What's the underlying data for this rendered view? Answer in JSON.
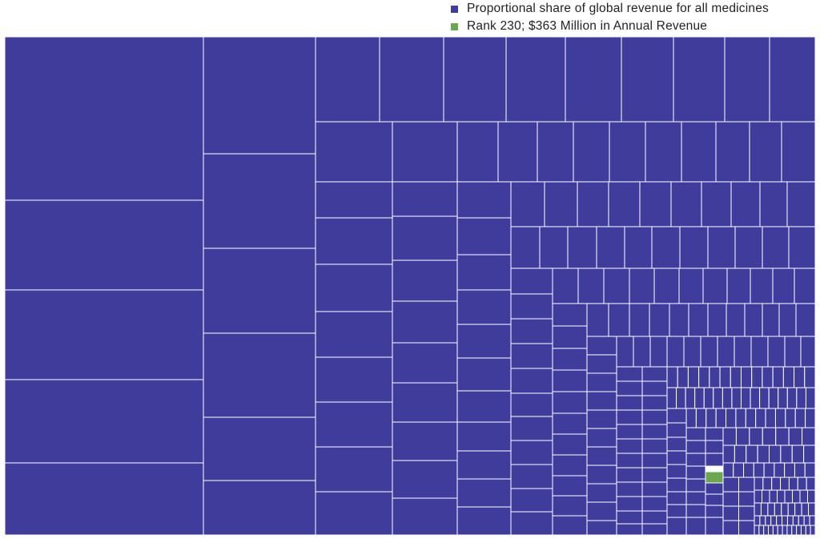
{
  "legend": {
    "items": [
      {
        "label": "Proportional share of global revenue for all medicines",
        "color": "#3f3c9c"
      },
      {
        "label": "Rank 230; $363 Million in Annual Revenue",
        "color": "#6aa74f"
      }
    ]
  },
  "chart_data": {
    "type": "treemap",
    "title": "",
    "series": [
      {
        "name": "Proportional share of global revenue for all medicines",
        "color": "#3f3c9c"
      },
      {
        "name": "Rank 230; $363 Million in Annual Revenue",
        "color": "#6aa74f"
      }
    ],
    "highlight": {
      "rank": 230,
      "annual_revenue_millions_usd": 363
    },
    "grid": false,
    "legend_position": "top-right"
  }
}
